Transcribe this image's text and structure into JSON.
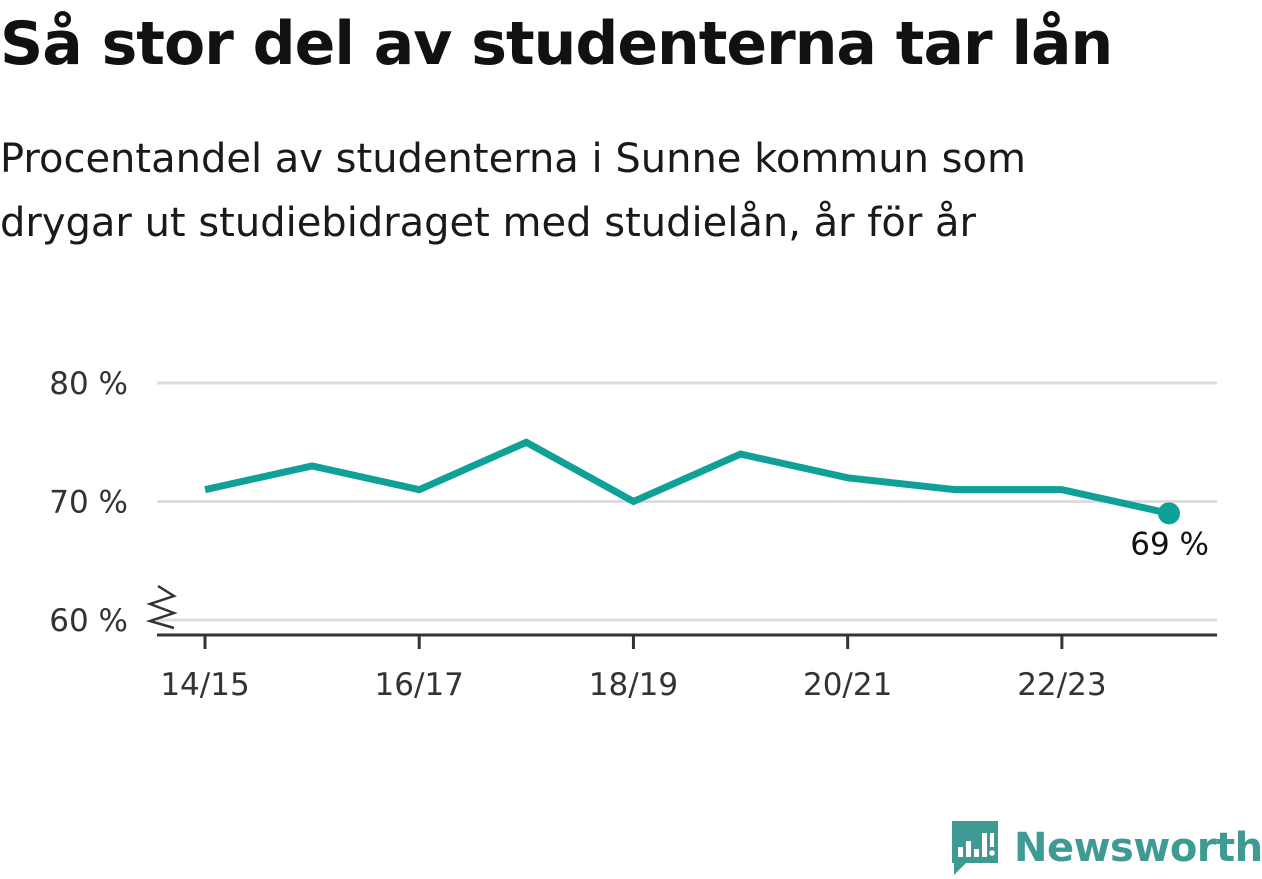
{
  "title": "Så stor del av studenterna tar lån",
  "subtitle_lines": [
    "Procentandel av studenterna i Sunne kommun som",
    "drygar ut studiebidraget med studielån, år för år"
  ],
  "brand": {
    "name": "Newsworthy",
    "color": "#3f9a93",
    "icon": "newsworthy-logo-icon"
  },
  "chart_data": {
    "type": "line",
    "x": [
      "14/15",
      "15/16",
      "16/17",
      "17/18",
      "18/19",
      "19/20",
      "20/21",
      "21/22",
      "22/23",
      "23/24"
    ],
    "x_tick_labels": [
      "14/15",
      "16/17",
      "18/19",
      "20/21",
      "22/23"
    ],
    "series": [
      {
        "values": [
          71,
          73,
          71,
          75,
          70,
          74,
          72,
          71,
          71,
          69
        ],
        "color": "#0fa097"
      }
    ],
    "ylim": [
      60,
      80
    ],
    "y_ticks": [
      60,
      70,
      80
    ],
    "y_tick_labels": [
      "60 %",
      "70 %",
      "80 %"
    ],
    "y_axis_break": true,
    "grid": true,
    "last_value_label": "69 %",
    "colors": {
      "line": "#0fa097",
      "grid": "#dddddd",
      "axis": "#333333"
    }
  }
}
